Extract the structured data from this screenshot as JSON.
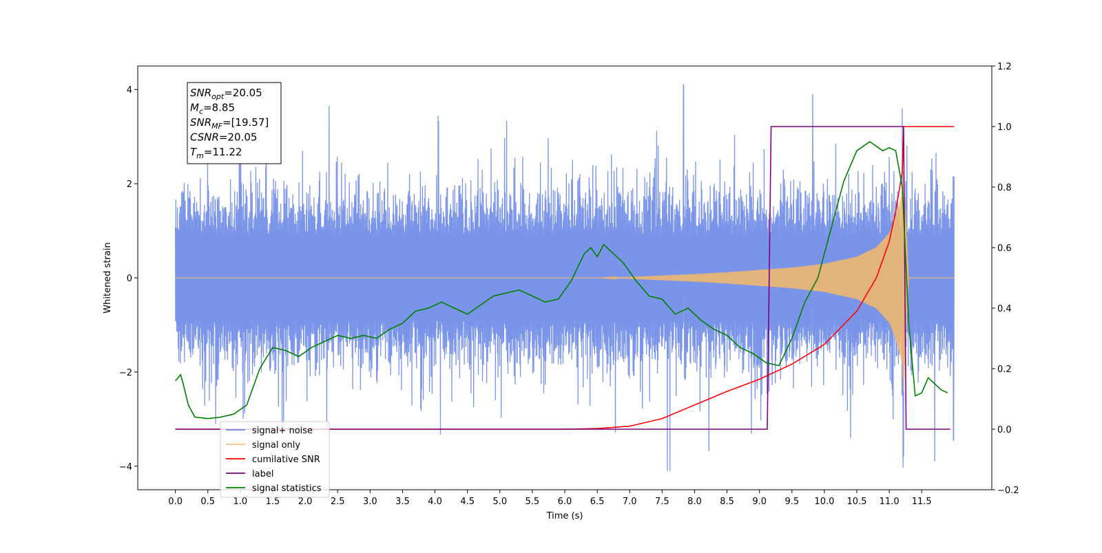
{
  "chart_data": {
    "type": "line",
    "xlabel": "Time (s)",
    "ylabel_left": "Whitened strain",
    "ylabel_right": "",
    "xlim": [
      -0.58,
      12.58
    ],
    "ylim_left": [
      -4.5,
      4.5
    ],
    "ylim_right": [
      -0.2,
      1.2
    ],
    "x_ticks": [
      0.0,
      0.5,
      1.0,
      1.5,
      2.0,
      2.5,
      3.0,
      3.5,
      4.0,
      4.5,
      5.0,
      5.5,
      6.0,
      6.5,
      7.0,
      7.5,
      8.0,
      8.5,
      9.0,
      9.5,
      10.0,
      10.5,
      11.0,
      11.5
    ],
    "x_tick_labels": [
      "0.0",
      "0.5",
      "1.0",
      "1.5",
      "2.0",
      "2.5",
      "3.0",
      "3.5",
      "4.0",
      "4.5",
      "5.0",
      "5.5",
      "6.0",
      "6.5",
      "7.0",
      "7.5",
      "8.0",
      "8.5",
      "9.0",
      "9.5",
      "10.0",
      "10.5",
      "11.0",
      "11.5"
    ],
    "y_left_ticks": [
      -4,
      -2,
      0,
      2,
      4
    ],
    "y_left_tick_labels": [
      "−4",
      "−2",
      "0",
      "2",
      "4"
    ],
    "y_right_ticks": [
      -0.2,
      0.0,
      0.2,
      0.4,
      0.6,
      0.8,
      1.0,
      1.2
    ],
    "y_right_tick_labels": [
      "−0.2",
      "0.0",
      "0.2",
      "0.4",
      "0.6",
      "0.8",
      "1.0",
      "1.2"
    ],
    "grid": false,
    "legend_position": "lower-left",
    "annotation": {
      "lines": [
        {
          "sym": "SNR",
          "sub": "opt",
          "value": "=20.05"
        },
        {
          "sym": "M",
          "sub": "c",
          "value": "=8.85"
        },
        {
          "sym": "SNR",
          "sub": "MF",
          "value": "=[19.57]"
        },
        {
          "sym": "CSNR",
          "sub": "",
          "value": "=20.05"
        },
        {
          "sym": "T",
          "sub": "m",
          "value": "=11.22"
        }
      ]
    },
    "series": [
      {
        "name": "signal+ noise",
        "color": "#6a88e6",
        "axis": "left",
        "kind": "noise",
        "x_range": [
          0.0,
          12.0
        ],
        "envelope": 1.5,
        "peaks": 2.6,
        "notable_spikes": [
          [
            7.83,
            4.1
          ],
          [
            9.82,
            3.9
          ],
          [
            11.2,
            3.6
          ],
          [
            7.58,
            -4.1
          ],
          [
            7.62,
            -4.1
          ],
          [
            11.22,
            -3.8
          ],
          [
            11.7,
            -3.9
          ],
          [
            11.99,
            -3.45
          ],
          [
            0.62,
            -3.1
          ]
        ]
      },
      {
        "name": "signal only",
        "color": "#f5b96a",
        "axis": "left",
        "kind": "chirp",
        "x": [
          0.0,
          6.5,
          7.0,
          7.5,
          8.0,
          8.5,
          9.0,
          9.5,
          10.0,
          10.5,
          10.8,
          11.0,
          11.1,
          11.2,
          11.22,
          11.3,
          12.0
        ],
        "amplitude": [
          0.0,
          0.0,
          0.02,
          0.05,
          0.08,
          0.12,
          0.17,
          0.22,
          0.3,
          0.45,
          0.65,
          0.95,
          1.3,
          1.8,
          2.4,
          0.0,
          0.0
        ]
      },
      {
        "name": "cumilative SNR",
        "color": "#ff0000",
        "axis": "right",
        "x": [
          0.0,
          6.0,
          6.5,
          7.0,
          7.5,
          8.0,
          8.5,
          9.0,
          9.5,
          10.0,
          10.5,
          10.8,
          11.0,
          11.1,
          11.2,
          11.22,
          12.0
        ],
        "y": [
          0.0,
          0.0,
          0.002,
          0.01,
          0.035,
          0.08,
          0.125,
          0.165,
          0.215,
          0.28,
          0.39,
          0.5,
          0.62,
          0.72,
          0.85,
          1.0,
          1.0
        ]
      },
      {
        "name": "label",
        "color": "#800080",
        "axis": "right",
        "x": [
          0.0,
          9.12,
          9.18,
          11.22,
          11.26,
          11.94
        ],
        "y": [
          0.0,
          0.0,
          1.0,
          1.0,
          0.0,
          0.0
        ]
      },
      {
        "name": "signal statistics",
        "color": "#008000",
        "axis": "right",
        "x": [
          0.0,
          0.08,
          0.12,
          0.2,
          0.3,
          0.5,
          0.7,
          0.9,
          1.1,
          1.3,
          1.5,
          1.7,
          1.9,
          2.1,
          2.3,
          2.5,
          2.7,
          2.9,
          3.1,
          3.3,
          3.5,
          3.7,
          3.9,
          4.1,
          4.3,
          4.5,
          4.7,
          4.9,
          5.1,
          5.3,
          5.5,
          5.7,
          5.9,
          6.1,
          6.3,
          6.4,
          6.5,
          6.6,
          6.7,
          6.9,
          7.1,
          7.3,
          7.5,
          7.7,
          7.9,
          8.1,
          8.3,
          8.5,
          8.7,
          8.9,
          9.1,
          9.3,
          9.5,
          9.7,
          9.9,
          10.1,
          10.3,
          10.5,
          10.7,
          10.9,
          11.0,
          11.1,
          11.2,
          11.3,
          11.4,
          11.5,
          11.6,
          11.7,
          11.8,
          11.9
        ],
        "y": [
          0.16,
          0.18,
          0.15,
          0.08,
          0.04,
          0.035,
          0.04,
          0.05,
          0.08,
          0.2,
          0.27,
          0.26,
          0.24,
          0.27,
          0.29,
          0.31,
          0.3,
          0.31,
          0.3,
          0.33,
          0.35,
          0.39,
          0.4,
          0.42,
          0.4,
          0.38,
          0.41,
          0.44,
          0.45,
          0.46,
          0.44,
          0.42,
          0.43,
          0.49,
          0.58,
          0.6,
          0.57,
          0.61,
          0.59,
          0.55,
          0.49,
          0.44,
          0.43,
          0.38,
          0.4,
          0.36,
          0.33,
          0.31,
          0.27,
          0.25,
          0.22,
          0.21,
          0.3,
          0.42,
          0.5,
          0.66,
          0.82,
          0.92,
          0.95,
          0.92,
          0.93,
          0.92,
          0.8,
          0.35,
          0.11,
          0.12,
          0.17,
          0.15,
          0.13,
          0.12
        ]
      }
    ]
  }
}
